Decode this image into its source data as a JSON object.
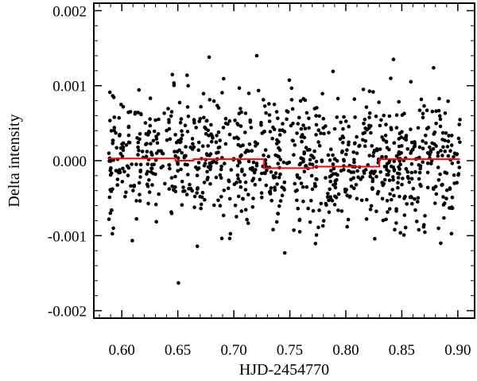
{
  "chart_data": {
    "type": "scatter",
    "title": "",
    "xlabel": "HJD-2454770",
    "ylabel": "Delta intensity",
    "xlim": [
      0.575,
      0.915
    ],
    "ylim": [
      -0.0021,
      0.0021
    ],
    "xticks": [
      0.6,
      0.65,
      0.7,
      0.75,
      0.8,
      0.85,
      0.9
    ],
    "xtick_labels": [
      "0.60",
      "0.65",
      "0.70",
      "0.75",
      "0.80",
      "0.85",
      "0.90"
    ],
    "yticks": [
      -0.002,
      -0.001,
      0.0,
      0.001,
      0.002
    ],
    "ytick_labels": [
      "-0.002",
      "-0.001",
      "0.000",
      "0.001",
      "0.002"
    ],
    "grid": false,
    "colors": {
      "points": "#000000",
      "model": "#ff0000"
    },
    "series": [
      {
        "kind": "scatter",
        "x_range": [
          0.588,
          0.902
        ],
        "n_points": 1000,
        "std": 0.00043,
        "note_outliers": [
          {
            "x": 0.6505,
            "y": -0.00163
          },
          {
            "x": 0.7205,
            "y": 0.0014
          },
          {
            "x": 0.678,
            "y": 0.00138
          },
          {
            "x": 0.8425,
            "y": 0.00135
          },
          {
            "x": 0.7455,
            "y": -0.00123
          }
        ]
      },
      {
        "kind": "step",
        "points": [
          [
            0.588,
            3e-05
          ],
          [
            0.648,
            3e-05
          ],
          [
            0.648,
            0.0
          ],
          [
            0.664,
            0.0
          ],
          [
            0.664,
            2e-05
          ],
          [
            0.727,
            2e-05
          ],
          [
            0.727,
            -0.0001
          ],
          [
            0.771,
            -0.0001
          ],
          [
            0.771,
            -8e-05
          ],
          [
            0.83,
            -8e-05
          ],
          [
            0.83,
            2e-05
          ],
          [
            0.902,
            2e-05
          ]
        ]
      }
    ]
  }
}
